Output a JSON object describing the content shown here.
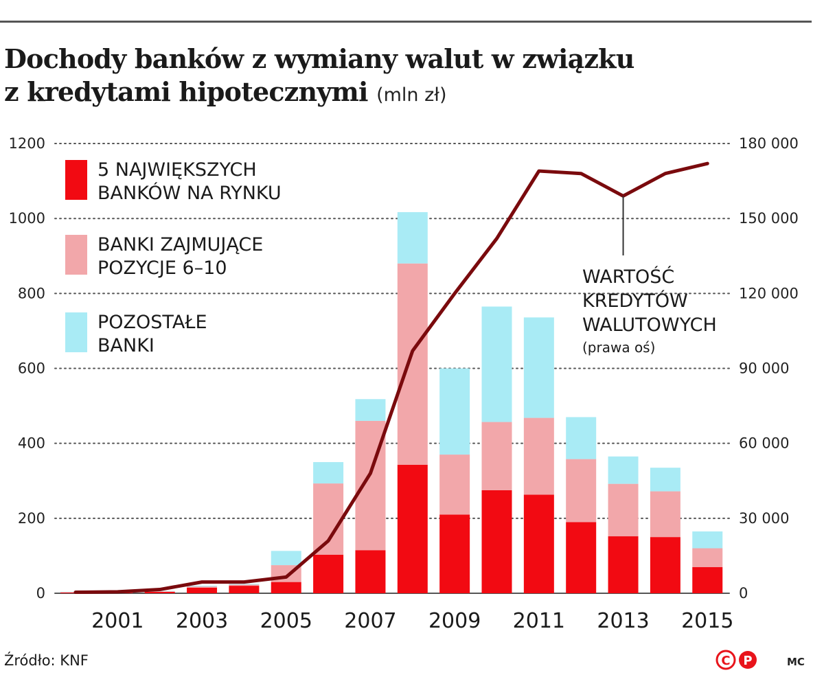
{
  "header": {
    "title_line1": "Dochody banków z wymiany walut w związku",
    "title_line2": "z kredytami hipotecznymi",
    "unit": "(mln zł)"
  },
  "footer": {
    "source": "Źródło: KNF",
    "author": "MC",
    "logo_name": "cp-logo"
  },
  "colors": {
    "top5": "#f20a12",
    "pos6_10": "#f2a7aa",
    "other": "#a9ebf5",
    "line": "#7a0a0d",
    "grid": "#555555"
  },
  "chart_data": {
    "type": "bar",
    "stacked": true,
    "categories": [
      "2000",
      "2001",
      "2002",
      "2003",
      "2004",
      "2005",
      "2006",
      "2007",
      "2008",
      "2009",
      "2010",
      "2011",
      "2012",
      "2013",
      "2014",
      "2015"
    ],
    "x_tick_labels": [
      "2001",
      "2003",
      "2005",
      "2007",
      "2009",
      "2011",
      "2013",
      "2015"
    ],
    "series": [
      {
        "name": "5 NAJWIĘKSZYCH BANKÓW NA RYNKU",
        "values": [
          2,
          1,
          4,
          15,
          20,
          30,
          103,
          115,
          343,
          210,
          275,
          263,
          190,
          152,
          150,
          70
        ]
      },
      {
        "name": "BANKI ZAJMUJĄCE POZYCJE 6–10",
        "values": [
          1,
          1,
          1,
          3,
          3,
          45,
          190,
          345,
          537,
          160,
          182,
          205,
          168,
          140,
          122,
          50
        ]
      },
      {
        "name": "POZOSTAŁE BANKI",
        "values": [
          1,
          1,
          1,
          2,
          2,
          38,
          57,
          58,
          137,
          230,
          308,
          268,
          112,
          73,
          63,
          45
        ]
      }
    ],
    "legend_lines": [
      [
        "5 NAJWIĘKSZYCH",
        "BANKÓW NA RYNKU"
      ],
      [
        "BANKI ZAJMUJĄCE",
        "POZYCJE 6–10"
      ],
      [
        "POZOSTAŁE",
        "BANKI"
      ]
    ],
    "line_series": {
      "name": "WARTOŚĆ KREDYTÓW WALUTOWYCH",
      "axis": "right",
      "values": [
        400,
        600,
        1500,
        4500,
        4500,
        6500,
        21000,
        48000,
        97000,
        120000,
        142000,
        169000,
        168000,
        159000,
        168000,
        172000
      ]
    },
    "annotation": {
      "lines": [
        "WARTOŚĆ",
        "KREDYTÓW",
        "WALUTOWYCH"
      ],
      "note": "(prawa oś)",
      "points_to": "2013"
    },
    "ylim": [
      0,
      1200
    ],
    "y_ticks": [
      0,
      200,
      400,
      600,
      800,
      1000,
      1200
    ],
    "y2lim": [
      0,
      180000
    ],
    "y2_ticks": [
      "0",
      "30 000",
      "60 000",
      "90 000",
      "120 000",
      "150 000",
      "180 000"
    ],
    "grid": "dotted horizontal",
    "legend_position": "top-left"
  }
}
